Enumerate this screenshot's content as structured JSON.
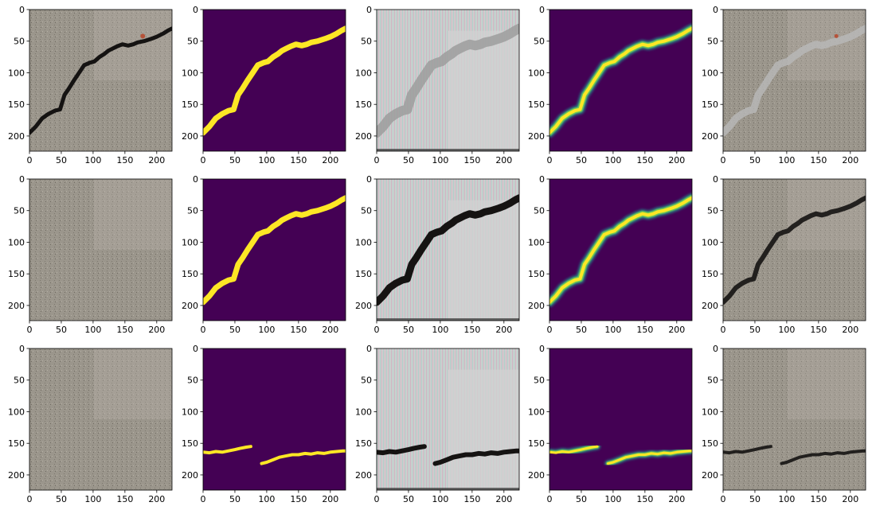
{
  "figure": {
    "grid": {
      "rows": 3,
      "cols": 5
    },
    "axes": {
      "x_ticks": [
        "0",
        "50",
        "100",
        "150",
        "200"
      ],
      "y_ticks": [
        "0",
        "50",
        "100",
        "150",
        "200"
      ],
      "x_tick_values": [
        0,
        50,
        100,
        150,
        200
      ],
      "y_tick_values": [
        0,
        50,
        100,
        150,
        200
      ],
      "xlim": [
        0,
        224
      ],
      "ylim": [
        224,
        0
      ]
    },
    "colors": {
      "concrete": "#9b968c",
      "concrete_light": "#b8b3a8",
      "mask_background": "#440154",
      "mask_foreground": "#fde725",
      "heat_mid": "#21918c",
      "heat_green": "#7ad151",
      "crack_dark": "#151312",
      "synthetic_bg": "#d2d2d2",
      "rust": "#b5533a"
    },
    "panel_types": [
      [
        "photo-with-crack",
        "binary-mask",
        "synthetic-texture",
        "probability-heatmap",
        "overlay"
      ],
      [
        "photo-plain",
        "binary-mask",
        "synthetic-texture",
        "probability-heatmap",
        "overlay"
      ],
      [
        "photo-plain",
        "binary-mask",
        "synthetic-texture",
        "probability-heatmap",
        "overlay"
      ]
    ],
    "crack_paths": {
      "diagonal": [
        [
          0,
          195
        ],
        [
          10,
          185
        ],
        [
          20,
          172
        ],
        [
          30,
          165
        ],
        [
          40,
          160
        ],
        [
          48,
          158
        ],
        [
          55,
          135
        ],
        [
          62,
          125
        ],
        [
          70,
          112
        ],
        [
          78,
          100
        ],
        [
          86,
          88
        ],
        [
          95,
          84
        ],
        [
          102,
          82
        ],
        [
          110,
          75
        ],
        [
          118,
          70
        ],
        [
          124,
          65
        ],
        [
          130,
          62
        ],
        [
          138,
          58
        ],
        [
          146,
          55
        ],
        [
          155,
          57
        ],
        [
          163,
          55
        ],
        [
          170,
          52
        ],
        [
          180,
          50
        ],
        [
          192,
          46
        ],
        [
          200,
          43
        ],
        [
          210,
          38
        ],
        [
          218,
          33
        ],
        [
          224,
          30
        ]
      ],
      "horizontal_left": [
        [
          0,
          164
        ],
        [
          10,
          165
        ],
        [
          20,
          163
        ],
        [
          30,
          164
        ],
        [
          40,
          162
        ],
        [
          50,
          160
        ],
        [
          58,
          158
        ],
        [
          68,
          156
        ],
        [
          75,
          155
        ]
      ],
      "horizontal_right": [
        [
          92,
          182
        ],
        [
          100,
          180
        ],
        [
          110,
          176
        ],
        [
          120,
          172
        ],
        [
          130,
          170
        ],
        [
          140,
          168
        ],
        [
          150,
          168
        ],
        [
          160,
          166
        ],
        [
          170,
          167
        ],
        [
          180,
          165
        ],
        [
          190,
          166
        ],
        [
          200,
          164
        ],
        [
          210,
          163
        ],
        [
          220,
          162
        ],
        [
          224,
          162
        ]
      ]
    }
  }
}
